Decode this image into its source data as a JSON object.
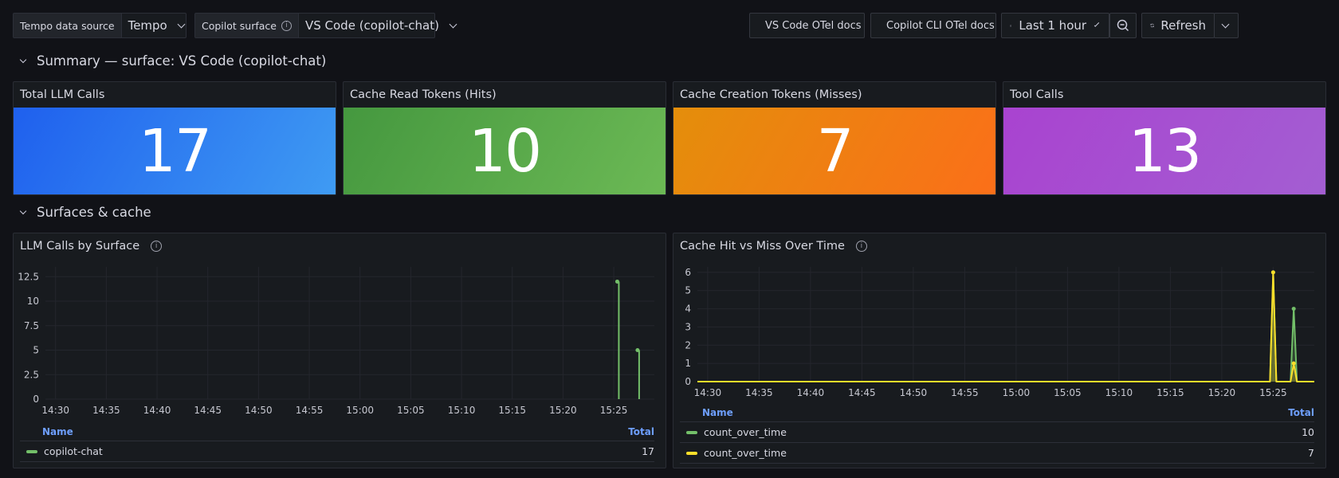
{
  "toolbar": {
    "datasource": {
      "label": "Tempo data source",
      "value": "Tempo"
    },
    "surface": {
      "label": "Copilot surface",
      "value": "VS Code (copilot-chat)"
    },
    "vscode_docs": "VS Code OTel docs",
    "cli_docs": "Copilot CLI OTel docs",
    "time_range": "Last 1 hour",
    "refresh": "Refresh"
  },
  "rows": {
    "summary": "Summary — surface: VS Code (copilot-chat)",
    "surfaces": "Surfaces & cache"
  },
  "stats": [
    {
      "title": "Total LLM Calls",
      "value": "17",
      "color_from": "#1f60ee",
      "color_to": "#3f9bf3"
    },
    {
      "title": "Cache Read Tokens (Hits)",
      "value": "10",
      "color_from": "#45983f",
      "color_to": "#6cb955"
    },
    {
      "title": "Cache Creation Tokens (Misses)",
      "value": "7",
      "color_from": "#e48e0b",
      "color_to": "#fb6f19"
    },
    {
      "title": "Tool Calls",
      "value": "13",
      "color_from": "#a943d0",
      "color_to": "#a35ed2"
    }
  ],
  "legend_headers": {
    "name": "Name",
    "total": "Total"
  },
  "chart_data": [
    {
      "type": "line",
      "title": "LLM Calls by Surface",
      "x_ticks": [
        "14:30",
        "14:35",
        "14:40",
        "14:45",
        "14:50",
        "14:55",
        "15:00",
        "15:05",
        "15:10",
        "15:15",
        "15:20",
        "15:25"
      ],
      "y_ticks": [
        "0",
        "2.5",
        "5",
        "7.5",
        "10",
        "12.5"
      ],
      "ylim": [
        0,
        13.5
      ],
      "xlim": [
        "14:29",
        "15:29"
      ],
      "series": [
        {
          "name": "copilot-chat",
          "color": "#73bf69",
          "total": "17",
          "points": [
            [
              "15:25:30",
              12
            ],
            [
              "15:27:30",
              5
            ]
          ]
        }
      ]
    },
    {
      "type": "line",
      "title": "Cache Hit vs Miss Over Time",
      "x_ticks": [
        "14:30",
        "14:35",
        "14:40",
        "14:45",
        "14:50",
        "14:55",
        "15:00",
        "15:05",
        "15:10",
        "15:15",
        "15:20",
        "15:25"
      ],
      "y_ticks": [
        "0",
        "1",
        "2",
        "3",
        "4",
        "5",
        "6"
      ],
      "ylim": [
        0,
        6.3
      ],
      "xlim": [
        "14:29",
        "15:29"
      ],
      "series": [
        {
          "name": "count_over_time",
          "color": "#73bf69",
          "total": "10",
          "points": [
            [
              "15:25:00",
              6
            ],
            [
              "15:27:00",
              4
            ]
          ]
        },
        {
          "name": "count_over_time",
          "color": "#fade2a",
          "total": "7",
          "points": [
            [
              "15:25:00",
              6
            ],
            [
              "15:27:00",
              1
            ]
          ]
        }
      ]
    }
  ]
}
